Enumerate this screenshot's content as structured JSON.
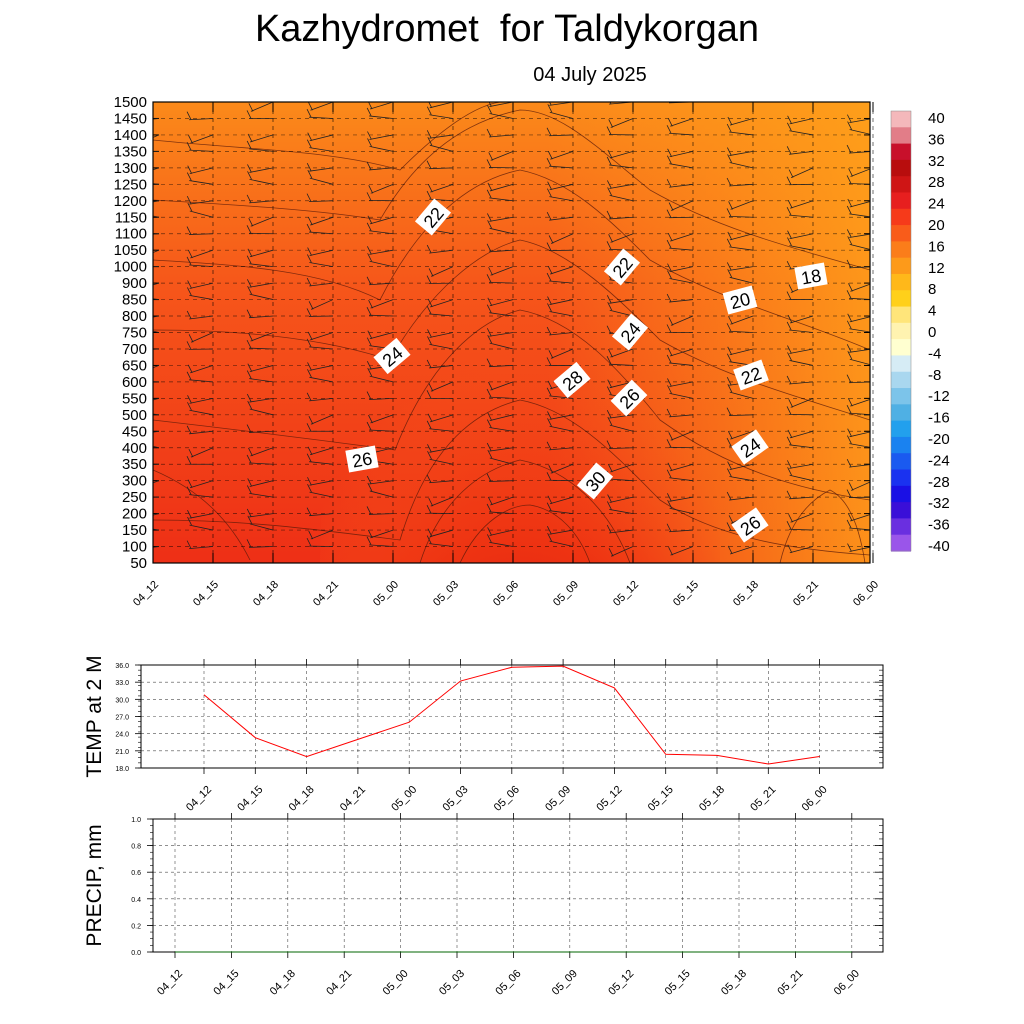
{
  "title": "Kazhydromet  for Taldykorgan",
  "subtitle": "04 July 2025",
  "chart_data": [
    {
      "type": "heatmap",
      "description_kind": "cross-section",
      "x_ticks": [
        "04_12",
        "04_15",
        "04_18",
        "04_21",
        "05_00",
        "05_03",
        "05_06",
        "05_09",
        "05_12",
        "05_15",
        "05_18",
        "05_21",
        "06_00"
      ],
      "y_ticks": [
        50,
        100,
        150,
        200,
        250,
        300,
        350,
        400,
        450,
        500,
        550,
        600,
        650,
        700,
        750,
        800,
        850,
        900,
        1000,
        1050,
        1100,
        1150,
        1200,
        1250,
        1300,
        1350,
        1400,
        1450,
        1500
      ],
      "colorbar": {
        "labels": [
          "40",
          "36",
          "32",
          "28",
          "24",
          "20",
          "16",
          "12",
          "8",
          "4",
          "0",
          "-4",
          "-8",
          "-12",
          "-16",
          "-20",
          "-24",
          "-28",
          "-32",
          "-36",
          "-40"
        ],
        "colors": [
          "#f4b8bb",
          "#e27d88",
          "#c8102b",
          "#b80d0d",
          "#cf1515",
          "#e71f1f",
          "#f63a1a",
          "#f95c1a",
          "#fb7d1a",
          "#fd9a1a",
          "#ffb81a",
          "#ffd01a",
          "#ffe57a",
          "#fff3b0",
          "#ffffd0",
          "#d6ecf5",
          "#a9d7ef",
          "#7cc4ea",
          "#4fb0e4",
          "#22a0ed",
          "#1a82f0",
          "#1a5af0",
          "#1a32f0",
          "#1a10e5",
          "#3a0fd8",
          "#6a2fe0",
          "#9a55ea"
        ]
      },
      "contour_labels": [
        "22",
        "22",
        "18",
        "20",
        "24",
        "24",
        "28",
        "26",
        "22",
        "26",
        "24",
        "30",
        "26"
      ]
    },
    {
      "type": "line",
      "ylabel": "TEMP at 2 M",
      "ylim": [
        18,
        36
      ],
      "y_ticks": [
        "36.0",
        "33.0",
        "30.0",
        "27.0",
        "24.0",
        "21.0",
        "18.0"
      ],
      "x_ticks": [
        "04_12",
        "04_15",
        "04_18",
        "04_21",
        "05_00",
        "05_03",
        "05_06",
        "05_09",
        "05_12",
        "05_15",
        "05_18",
        "05_21",
        "06_00"
      ],
      "series": [
        {
          "values": [
            30.8,
            23.3,
            20.0,
            23.0,
            26.0,
            33.2,
            35.6,
            35.8,
            32.0,
            20.4,
            20.2,
            18.7,
            20.0
          ],
          "color": "#ff0000"
        }
      ]
    },
    {
      "type": "line",
      "ylabel": "PRECIP, mm",
      "ylim": [
        0,
        1
      ],
      "y_ticks": [
        "1.0",
        "0.8",
        "0.6",
        "0.4",
        "0.2",
        "0.0"
      ],
      "x_ticks": [
        "04_12",
        "04_15",
        "04_18",
        "04_21",
        "05_00",
        "05_03",
        "05_06",
        "05_09",
        "05_12",
        "05_15",
        "05_18",
        "05_21",
        "06_00"
      ],
      "series": [
        {
          "values": [
            0,
            0,
            0,
            0,
            0,
            0,
            0,
            0,
            0,
            0,
            0,
            0,
            0
          ],
          "color": "#006400"
        }
      ]
    }
  ]
}
